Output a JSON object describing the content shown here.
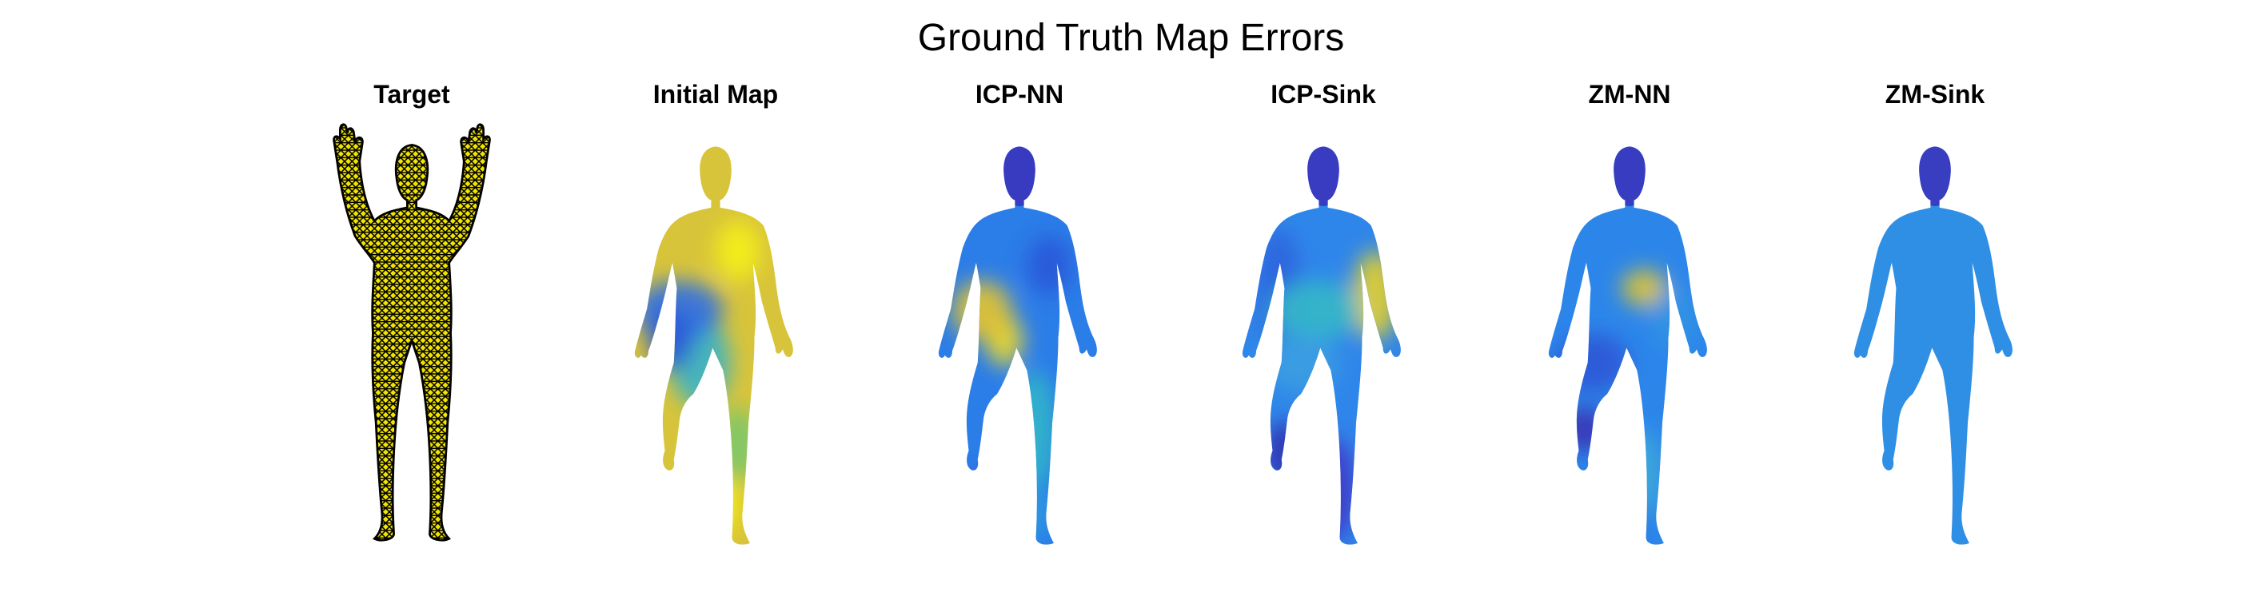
{
  "figure": {
    "title": "Ground Truth Map Errors"
  },
  "panels": [
    {
      "id": "target",
      "label": "Target",
      "pose": "arms-up",
      "style": "wireframe"
    },
    {
      "id": "initial-map",
      "label": "Initial Map",
      "pose": "knee-lift",
      "style": "heatmap",
      "base": "#d8c43a",
      "patches": [
        "#f5ef1a",
        "#39b2c8",
        "#2d6fe6",
        "#7cc86a",
        "#f8f40f",
        "#2a56d8"
      ]
    },
    {
      "id": "icp-nn",
      "label": "ICP-NN",
      "pose": "knee-lift",
      "style": "heatmap",
      "base": "#2b7de8",
      "patches": [
        "#2a56d8",
        "#f0d92a",
        "#32b6c9",
        "#4d3fd0",
        "#e6c42c",
        "#2c9be0"
      ]
    },
    {
      "id": "icp-sink",
      "label": "ICP-Sink",
      "pose": "knee-lift",
      "style": "heatmap",
      "base": "#2f86ea",
      "patches": [
        "#2c64dd",
        "#e8d22a",
        "#35b8c8",
        "#4036c8",
        "#3a9fe2",
        "#3030b0"
      ]
    },
    {
      "id": "zm-nn",
      "label": "ZM-NN",
      "pose": "knee-lift",
      "style": "heatmap",
      "base": "#2c86ea",
      "patches": [
        "#e3c52e",
        "#2f56d6",
        "#3fa9da",
        "#3c2fb8",
        "#3094e4",
        "#3a30b4"
      ]
    },
    {
      "id": "zm-sink",
      "label": "ZM-Sink",
      "pose": "knee-lift",
      "style": "heatmap",
      "base": "#2f8fe4",
      "patches": [
        "#2f5fd8",
        "#31b4c3",
        "#3b2fb8",
        "#2c99e0",
        "#3d35c0",
        "#2f8ce6"
      ]
    }
  ],
  "colors": {
    "wireframe_fill": "#f2e600",
    "wireframe_line": "#000000",
    "head_dark": "#3b2fb8"
  }
}
